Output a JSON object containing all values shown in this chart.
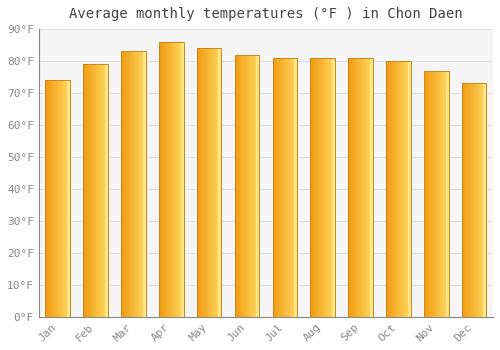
{
  "title": "Average monthly temperatures (°F ) in Chon Daen",
  "months": [
    "Jan",
    "Feb",
    "Mar",
    "Apr",
    "May",
    "Jun",
    "Jul",
    "Aug",
    "Sep",
    "Oct",
    "Nov",
    "Dec"
  ],
  "values": [
    74,
    79,
    83,
    86,
    84,
    82,
    81,
    81,
    81,
    80,
    77,
    73
  ],
  "bar_color_left": "#F5A623",
  "bar_color_right": "#FFD060",
  "bar_edge_color": "#C8871A",
  "background_color": "#ffffff",
  "plot_bg_color": "#f5f5f5",
  "grid_color": "#e0e0e0",
  "title_fontsize": 10,
  "tick_fontsize": 8,
  "ylim_min": 0,
  "ylim_max": 90,
  "yticks": [
    0,
    10,
    20,
    30,
    40,
    50,
    60,
    70,
    80,
    90
  ]
}
